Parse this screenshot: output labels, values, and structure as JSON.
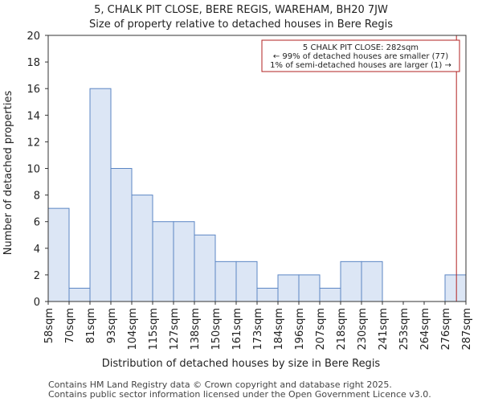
{
  "chart_data": {
    "type": "bar",
    "title": "5, CHALK PIT CLOSE, BERE REGIS, WAREHAM, BH20 7JW",
    "subtitle": "Size of property relative to detached houses in Bere Regis",
    "xlabel": "Distribution of detached houses by size in Bere Regis",
    "ylabel": "Number of detached properties",
    "bin_edges": [
      58,
      70,
      81,
      93,
      104,
      115,
      127,
      138,
      150,
      161,
      173,
      184,
      196,
      207,
      218,
      230,
      241,
      253,
      264,
      276,
      287
    ],
    "x_tick_labels": [
      "58sqm",
      "70sqm",
      "81sqm",
      "93sqm",
      "104sqm",
      "115sqm",
      "127sqm",
      "138sqm",
      "150sqm",
      "161sqm",
      "173sqm",
      "184sqm",
      "196sqm",
      "207sqm",
      "218sqm",
      "230sqm",
      "241sqm",
      "253sqm",
      "264sqm",
      "276sqm",
      "287sqm"
    ],
    "values": [
      7,
      1,
      16,
      10,
      8,
      6,
      6,
      5,
      3,
      3,
      1,
      2,
      2,
      1,
      3,
      3,
      0,
      0,
      0,
      2
    ],
    "ylim": [
      0,
      20
    ],
    "y_ticks": [
      0,
      2,
      4,
      6,
      8,
      10,
      12,
      14,
      16,
      18,
      20
    ],
    "marker": {
      "value": 282
    },
    "annotation_lines": [
      "5 CHALK PIT CLOSE: 282sqm",
      "← 99% of detached houses are smaller (77)",
      "1% of semi-detached houses are larger (1) →"
    ],
    "colors": {
      "bar_fill": "#dce6f5",
      "bar_edge": "#5b86c4",
      "marker": "#b22222"
    },
    "grid": false,
    "footer": [
      "Contains HM Land Registry data © Crown copyright and database right 2025.",
      "Contains public sector information licensed under the Open Government Licence v3.0."
    ]
  }
}
